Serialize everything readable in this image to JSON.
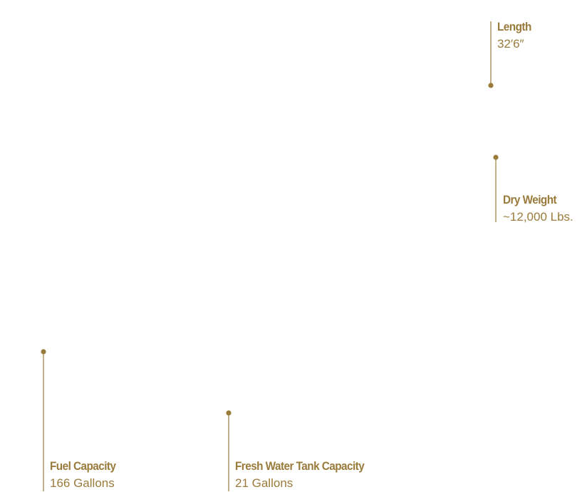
{
  "specs": [
    {
      "label": "Length",
      "value": "32′6″"
    },
    {
      "label": "Dry Weight",
      "value": "~12,000 Lbs."
    },
    {
      "label": "Fuel Capacity",
      "value": "166 Gallons"
    },
    {
      "label": "Fresh Water Tank Capacity",
      "value": "21 Gallons"
    }
  ]
}
